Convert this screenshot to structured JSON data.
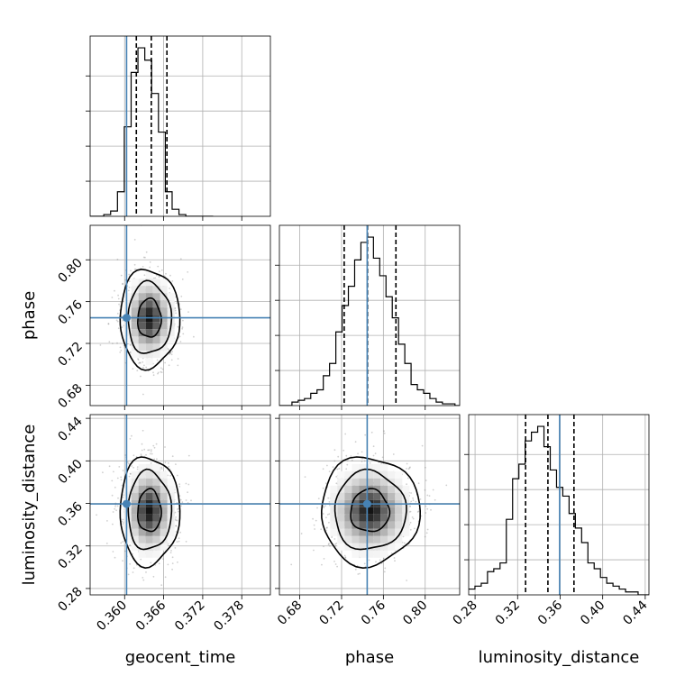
{
  "chart_data": {
    "type": "corner",
    "parameters": [
      "geocent_time",
      "phase",
      "luminosity_distance"
    ],
    "axis_labels": {
      "geocent_time": "geocent_time",
      "phase": "phase",
      "luminosity_distance": "luminosity_distance"
    },
    "ranges": {
      "geocent_time": [
        0.3547,
        0.3824
      ],
      "phase": [
        0.6605,
        0.833
      ],
      "luminosity_distance": [
        0.274,
        0.4435
      ]
    },
    "ticks": {
      "geocent_time": [
        "0.360",
        "0.366",
        "0.372",
        "0.378"
      ],
      "phase": [
        "0.68",
        "0.72",
        "0.76",
        "0.80"
      ],
      "luminosity_distance": [
        "0.28",
        "0.32",
        "0.36",
        "0.40",
        "0.44"
      ]
    },
    "truths": {
      "geocent_time": 0.3603,
      "phase": 0.7445,
      "luminosity_distance": 0.3595
    },
    "quantiles": {
      "geocent_time": [
        0.3618,
        0.3641,
        0.3665
      ],
      "phase": [
        0.7225,
        0.7448,
        0.772
      ],
      "luminosity_distance": [
        0.3275,
        0.3485,
        0.373
      ]
    },
    "histograms": {
      "geocent_time": {
        "edges": [
          0.3547,
          0.35575,
          0.3568,
          0.35785,
          0.3589,
          0.35995,
          0.361,
          0.36205,
          0.3631,
          0.36415,
          0.3652,
          0.36625,
          0.3673,
          0.36835,
          0.3694,
          0.37045,
          0.3715,
          0.37255,
          0.3736
        ],
        "counts": [
          0,
          0,
          1,
          3,
          14,
          51,
          82,
          96,
          89,
          70,
          48,
          14,
          4,
          1,
          0,
          0,
          0,
          0
        ]
      },
      "phase": {
        "edges": [
          0.6605,
          0.6665,
          0.6725,
          0.6785,
          0.6845,
          0.6905,
          0.6965,
          0.7025,
          0.7085,
          0.7145,
          0.7205,
          0.7265,
          0.7325,
          0.7385,
          0.7445,
          0.7505,
          0.7565,
          0.7625,
          0.7685,
          0.7745,
          0.7805,
          0.7865,
          0.7925,
          0.7985,
          0.8045,
          0.8105,
          0.8165,
          0.8225,
          0.8285,
          0.833
        ],
        "counts": [
          0,
          0,
          2,
          3,
          4,
          7,
          9,
          17,
          24,
          42,
          57,
          68,
          83,
          93,
          96,
          84,
          74,
          62,
          50,
          35,
          24,
          12,
          9,
          7,
          4,
          2,
          1,
          1,
          0
        ]
      },
      "luminosity_distance": {
        "edges": [
          0.274,
          0.2799,
          0.2858,
          0.2917,
          0.2976,
          0.3035,
          0.3094,
          0.3153,
          0.3212,
          0.3271,
          0.333,
          0.3389,
          0.3448,
          0.3507,
          0.3566,
          0.3625,
          0.3684,
          0.3743,
          0.3802,
          0.3861,
          0.392,
          0.3979,
          0.4038,
          0.4097,
          0.4156,
          0.4215,
          0.4274,
          0.4333,
          0.4392,
          0.4435
        ],
        "counts": [
          2,
          3,
          4,
          8,
          9,
          11,
          26,
          40,
          45,
          53,
          56,
          58,
          51,
          43,
          37,
          34,
          28,
          23,
          18,
          11,
          9,
          6,
          4,
          3,
          2,
          1,
          1,
          0,
          0
        ]
      }
    },
    "contours": {
      "phase_vs_geocent_time": {
        "center": [
          0.3638,
          0.744
        ],
        "sigma": [
          0.0018,
          0.0185
        ],
        "levels": [
          1.0,
          1.85,
          2.55
        ]
      },
      "luminosity_distance_vs_geocent_time": {
        "center": [
          0.3638,
          0.353
        ],
        "sigma": [
          0.0018,
          0.02
        ],
        "levels": [
          1.0,
          1.85,
          2.55
        ]
      },
      "luminosity_distance_vs_phase": {
        "center": [
          0.747,
          0.353
        ],
        "sigma": [
          0.0185,
          0.02
        ],
        "levels": [
          1.0,
          1.85,
          2.55
        ]
      }
    },
    "grid": true,
    "truth_color": "#4682b4",
    "contour_color": "#000000"
  }
}
